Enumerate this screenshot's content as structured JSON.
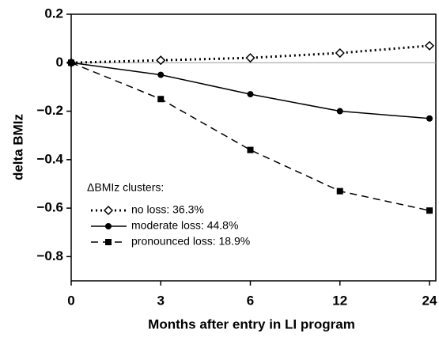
{
  "chart_data": {
    "type": "line",
    "x_label": "Months after entry in LI program",
    "y_label": "delta BMIz",
    "legend_title": "ΔBMIz clusters:",
    "categories": [
      "0",
      "3",
      "6",
      "12",
      "24"
    ],
    "series": [
      {
        "name": "no loss: 36.3%",
        "color": "#000000",
        "dash": "dotted",
        "marker": "open-diamond",
        "values": [
          0,
          0.01,
          0.02,
          0.04,
          0.07
        ]
      },
      {
        "name": "moderate loss: 44.8%",
        "color": "#000000",
        "dash": "solid",
        "marker": "circle",
        "values": [
          0,
          -0.05,
          -0.13,
          -0.2,
          -0.23
        ]
      },
      {
        "name": "pronounced loss: 18.9%",
        "color": "#000000",
        "dash": "dashed",
        "marker": "square",
        "values": [
          0,
          -0.15,
          -0.36,
          -0.53,
          -0.61
        ]
      }
    ],
    "ylim": [
      -0.9,
      0.2
    ],
    "yticks": [
      0.2,
      0,
      {
        "value": -0.2,
        "label": "−0.2"
      },
      {
        "value": -0.4,
        "label": "−0.4"
      },
      {
        "value": -0.6,
        "label": "−0.6"
      },
      {
        "value": -0.8,
        "label": "−0.8"
      }
    ],
    "zero_line": true,
    "grid": false
  }
}
